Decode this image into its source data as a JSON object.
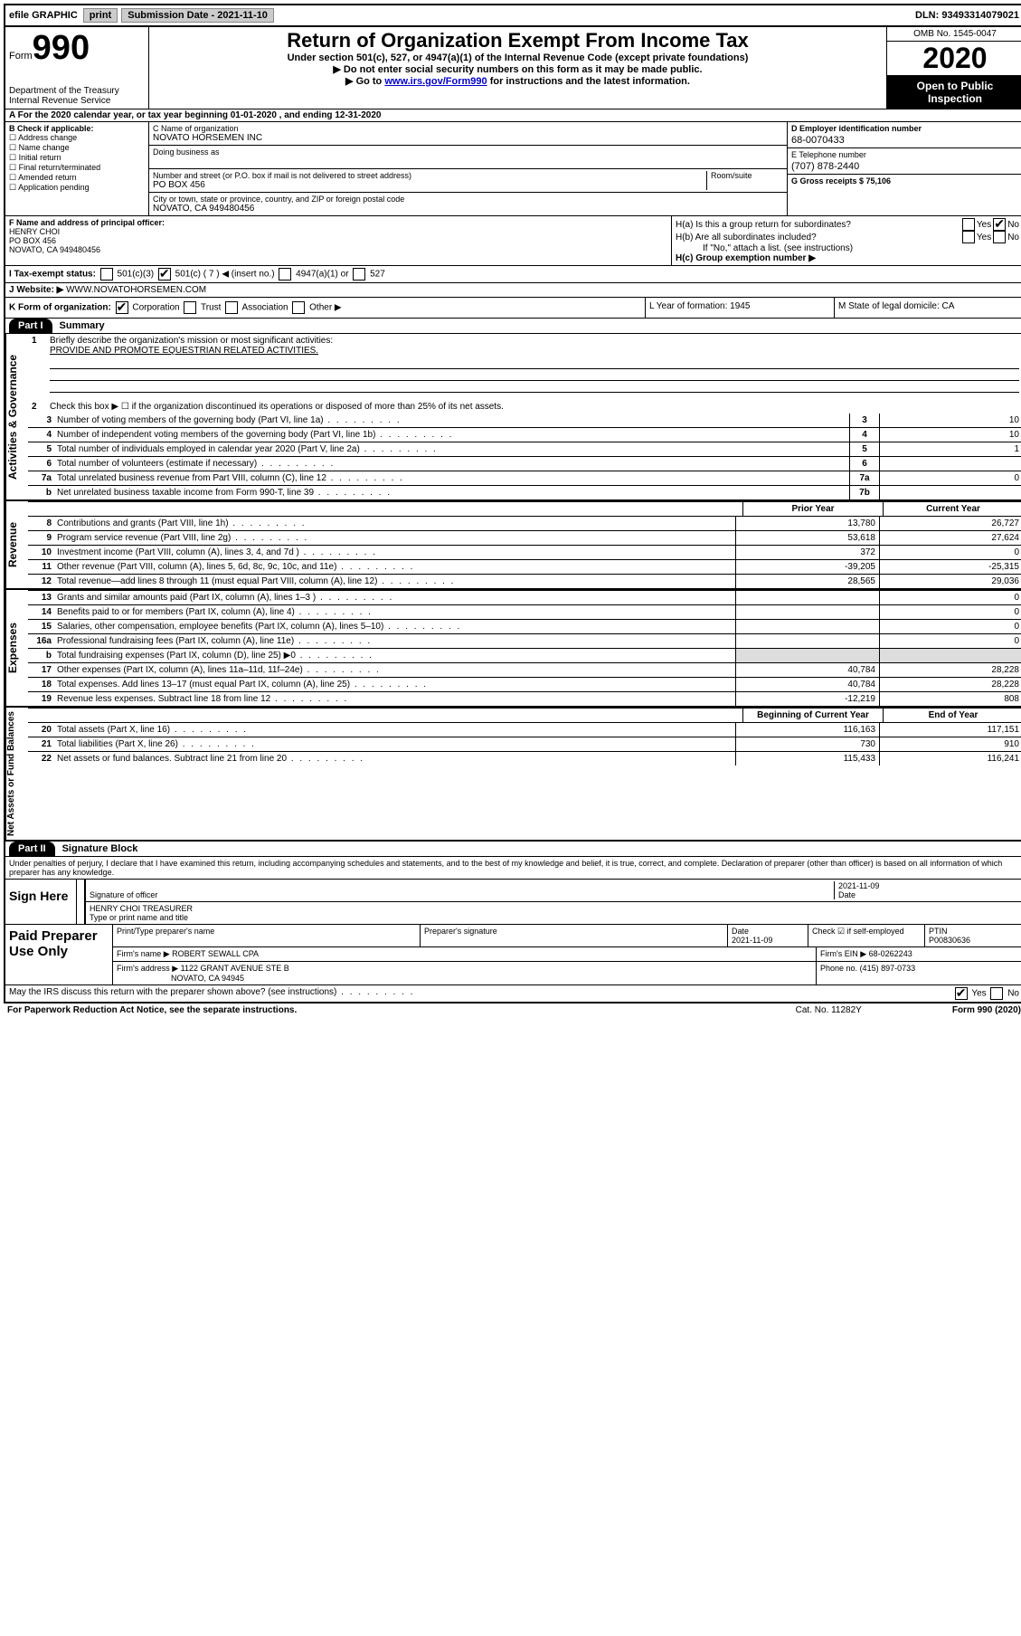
{
  "topbar": {
    "efile": "efile GRAPHIC",
    "print": "print",
    "sub_label": "Submission Date - 2021-11-10",
    "dln": "DLN: 93493314079021"
  },
  "header": {
    "form_word": "Form",
    "form_num": "990",
    "dept": "Department of the Treasury\nInternal Revenue Service",
    "title": "Return of Organization Exempt From Income Tax",
    "sub1": "Under section 501(c), 527, or 4947(a)(1) of the Internal Revenue Code (except private foundations)",
    "sub2": "Do not enter social security numbers on this form as it may be made public.",
    "sub3_pre": "Go to ",
    "sub3_link": "www.irs.gov/Form990",
    "sub3_post": " for instructions and the latest information.",
    "omb": "OMB No. 1545-0047",
    "year": "2020",
    "inspect": "Open to Public Inspection"
  },
  "rowA": "A  For the 2020 calendar year, or tax year beginning 01-01-2020    , and ending 12-31-2020",
  "checkB": {
    "title": "B Check if applicable:",
    "opts": [
      "Address change",
      "Name change",
      "Initial return",
      "Final return/terminated",
      "Amended return",
      "Application pending"
    ]
  },
  "orgC": {
    "name_label": "C Name of organization",
    "name": "NOVATO HORSEMEN INC",
    "dba_label": "Doing business as",
    "addr_label": "Number and street (or P.O. box if mail is not delivered to street address)",
    "room_label": "Room/suite",
    "addr": "PO BOX 456",
    "city_label": "City or town, state or province, country, and ZIP or foreign postal code",
    "city": "NOVATO, CA  949480456"
  },
  "colD": {
    "ein_label": "D Employer identification number",
    "ein": "68-0070433",
    "tel_label": "E Telephone number",
    "tel": "(707) 878-2440",
    "gross_label": "G Gross receipts $ 75,106"
  },
  "sectionF": {
    "label": "F Name and address of principal officer:",
    "name": "HENRY CHOI",
    "addr1": "PO BOX 456",
    "addr2": "NOVATO, CA  949480456"
  },
  "sectionH": {
    "ha": "H(a)  Is this a group return for subordinates?",
    "hb": "H(b)  Are all subordinates included?",
    "hb_note": "If \"No,\" attach a list. (see instructions)",
    "hc": "H(c)  Group exemption number ▶",
    "yes": "Yes",
    "no": "No"
  },
  "rowI": {
    "label": "I  Tax-exempt status:",
    "c1": "501(c)(3)",
    "c2": "501(c) ( 7 ) ◀ (insert no.)",
    "c3": "4947(a)(1) or",
    "c4": "527"
  },
  "rowJ": {
    "label": "J  Website: ▶",
    "value": "  WWW.NOVATOHORSEMEN.COM"
  },
  "rowK": {
    "label": "K Form of organization:",
    "corp": "Corporation",
    "trust": "Trust",
    "assoc": "Association",
    "other": "Other ▶",
    "L": "L Year of formation: 1945",
    "M": "M State of legal domicile: CA"
  },
  "part1": {
    "tab": "Part I",
    "title": "Summary",
    "side1": "Activities & Governance",
    "q1_label": "1",
    "q1": "Briefly describe the organization's mission or most significant activities:",
    "q1_ans": "PROVIDE AND PROMOTE EQUESTRIAN RELATED ACTIVITIES.",
    "q2_num": "2",
    "q2": "Check this box ▶ ☐  if the organization discontinued its operations or disposed of more than 25% of its net assets.",
    "rows_gov": [
      {
        "n": "3",
        "d": "Number of voting members of the governing body (Part VI, line 1a)",
        "box": "3",
        "v": "10"
      },
      {
        "n": "4",
        "d": "Number of independent voting members of the governing body (Part VI, line 1b)",
        "box": "4",
        "v": "10"
      },
      {
        "n": "5",
        "d": "Total number of individuals employed in calendar year 2020 (Part V, line 2a)",
        "box": "5",
        "v": "1"
      },
      {
        "n": "6",
        "d": "Total number of volunteers (estimate if necessary)",
        "box": "6",
        "v": ""
      },
      {
        "n": "7a",
        "d": "Total unrelated business revenue from Part VIII, column (C), line 12",
        "box": "7a",
        "v": "0"
      },
      {
        "n": "b",
        "d": "Net unrelated business taxable income from Form 990-T, line 39",
        "box": "7b",
        "v": ""
      }
    ],
    "side2": "Revenue",
    "hdr_prior": "Prior Year",
    "hdr_curr": "Current Year",
    "rows_rev": [
      {
        "n": "8",
        "d": "Contributions and grants (Part VIII, line 1h)",
        "p": "13,780",
        "c": "26,727"
      },
      {
        "n": "9",
        "d": "Program service revenue (Part VIII, line 2g)",
        "p": "53,618",
        "c": "27,624"
      },
      {
        "n": "10",
        "d": "Investment income (Part VIII, column (A), lines 3, 4, and 7d )",
        "p": "372",
        "c": "0"
      },
      {
        "n": "11",
        "d": "Other revenue (Part VIII, column (A), lines 5, 6d, 8c, 9c, 10c, and 11e)",
        "p": "-39,205",
        "c": "-25,315"
      },
      {
        "n": "12",
        "d": "Total revenue—add lines 8 through 11 (must equal Part VIII, column (A), line 12)",
        "p": "28,565",
        "c": "29,036"
      }
    ],
    "side3": "Expenses",
    "rows_exp": [
      {
        "n": "13",
        "d": "Grants and similar amounts paid (Part IX, column (A), lines 1–3 )",
        "p": "",
        "c": "0"
      },
      {
        "n": "14",
        "d": "Benefits paid to or for members (Part IX, column (A), line 4)",
        "p": "",
        "c": "0"
      },
      {
        "n": "15",
        "d": "Salaries, other compensation, employee benefits (Part IX, column (A), lines 5–10)",
        "p": "",
        "c": "0"
      },
      {
        "n": "16a",
        "d": "Professional fundraising fees (Part IX, column (A), line 11e)",
        "p": "",
        "c": "0"
      },
      {
        "n": "b",
        "d": "Total fundraising expenses (Part IX, column (D), line 25) ▶0",
        "p": "shaded",
        "c": "shaded"
      },
      {
        "n": "17",
        "d": "Other expenses (Part IX, column (A), lines 11a–11d, 11f–24e)",
        "p": "40,784",
        "c": "28,228"
      },
      {
        "n": "18",
        "d": "Total expenses. Add lines 13–17 (must equal Part IX, column (A), line 25)",
        "p": "40,784",
        "c": "28,228"
      },
      {
        "n": "19",
        "d": "Revenue less expenses. Subtract line 18 from line 12",
        "p": "-12,219",
        "c": "808"
      }
    ],
    "side4": "Net Assets or Fund Balances",
    "hdr_beg": "Beginning of Current Year",
    "hdr_end": "End of Year",
    "rows_net": [
      {
        "n": "20",
        "d": "Total assets (Part X, line 16)",
        "p": "116,163",
        "c": "117,151"
      },
      {
        "n": "21",
        "d": "Total liabilities (Part X, line 26)",
        "p": "730",
        "c": "910"
      },
      {
        "n": "22",
        "d": "Net assets or fund balances. Subtract line 21 from line 20",
        "p": "115,433",
        "c": "116,241"
      }
    ]
  },
  "part2": {
    "tab": "Part II",
    "title": "Signature Block",
    "penalty": "Under penalties of perjury, I declare that I have examined this return, including accompanying schedules and statements, and to the best of my knowledge and belief, it is true, correct, and complete. Declaration of preparer (other than officer) is based on all information of which preparer has any knowledge.",
    "sign_here": "Sign Here",
    "sig_officer": "Signature of officer",
    "sig_date": "2021-11-09",
    "date_label": "Date",
    "officer_name": "HENRY CHOI  TREASURER",
    "type_label": "Type or print name and title",
    "paid": "Paid Preparer Use Only",
    "prep_name_label": "Print/Type preparer's name",
    "prep_sig_label": "Preparer's signature",
    "prep_date": "2021-11-09",
    "check_self": "Check ☑ if self-employed",
    "ptin_label": "PTIN",
    "ptin": "P00830636",
    "firm_name_label": "Firm's name    ▶",
    "firm_name": "ROBERT SEWALL CPA",
    "firm_ein_label": "Firm's EIN ▶",
    "firm_ein": "68-0262243",
    "firm_addr_label": "Firm's address ▶",
    "firm_addr1": "1122 GRANT AVENUE STE B",
    "firm_addr2": "NOVATO, CA  94945",
    "phone_label": "Phone no.",
    "phone": "(415) 897-0733",
    "discuss": "May the IRS discuss this return with the preparer shown above? (see instructions)",
    "yes": "Yes",
    "no": "No"
  },
  "footer": {
    "paperwork": "For Paperwork Reduction Act Notice, see the separate instructions.",
    "cat": "Cat. No. 11282Y",
    "form": "Form 990 (2020)"
  }
}
